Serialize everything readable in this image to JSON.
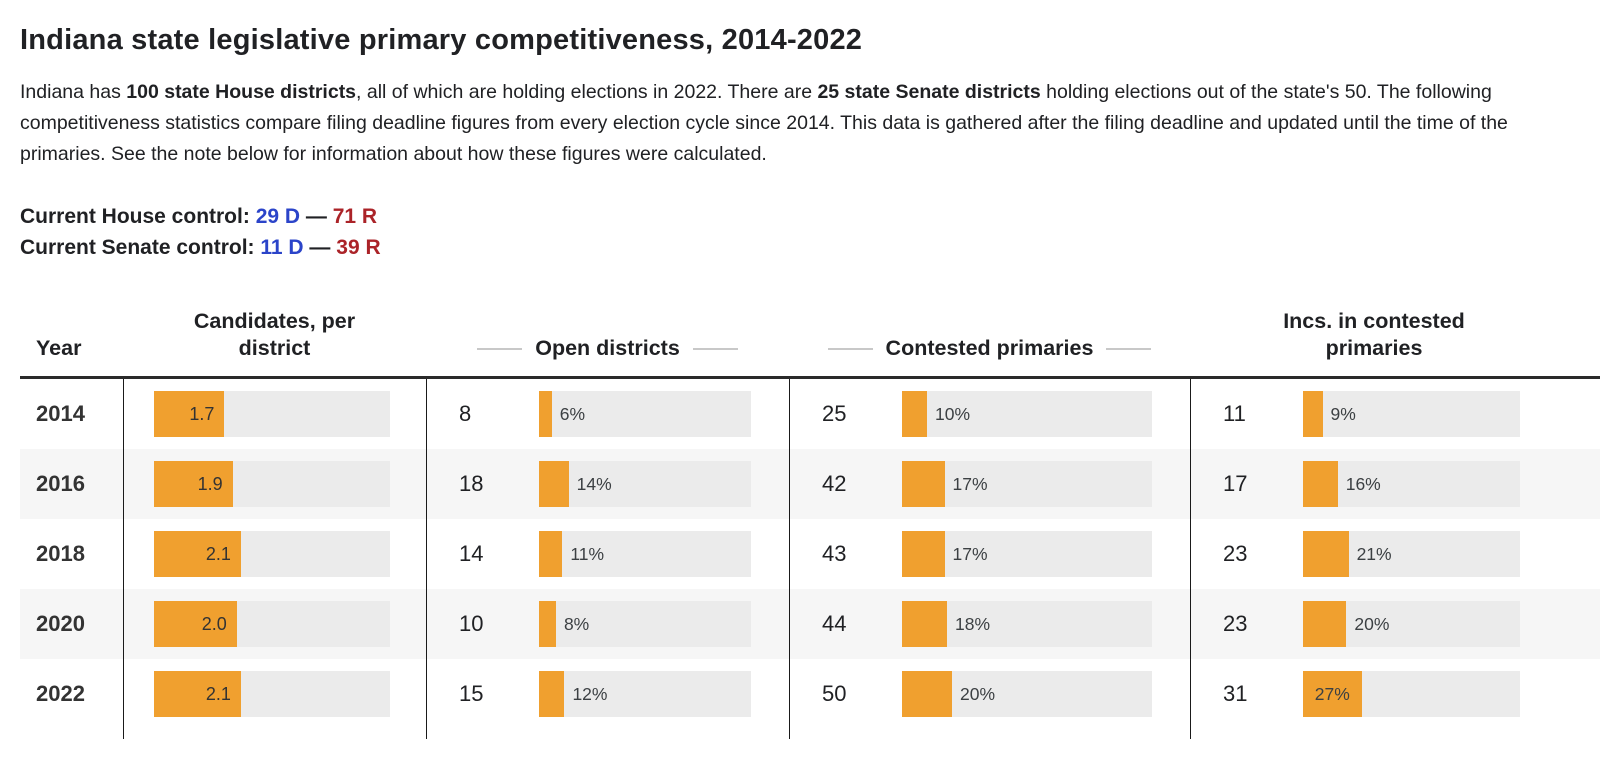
{
  "page": {
    "title": "Indiana state legislative primary competitiveness, 2014-2022",
    "intro_segments": [
      {
        "text": "Indiana has ",
        "bold": false
      },
      {
        "text": "100 state House districts",
        "bold": true
      },
      {
        "text": ", all of which are holding elections in 2022. There are ",
        "bold": false
      },
      {
        "text": "25 state Senate districts",
        "bold": true
      },
      {
        "text": " holding elections out of the state's 50. The following competitiveness statistics compare filing deadline figures from every election cycle since 2014. This data is gathered after the filing deadline and updated until the time of the primaries. See the note below for information about how these figures were calculated.",
        "bold": false
      }
    ],
    "house_control": {
      "label": "Current House control:",
      "dem": "29 D",
      "dash": "—",
      "rep": "71 R"
    },
    "senate_control": {
      "label": "Current Senate control:",
      "dem": "11 D",
      "dash": "—",
      "rep": "39 R"
    }
  },
  "colors": {
    "bar": "#F0A02F",
    "track": "#EBEBEB",
    "stripe": "#F6F6F6",
    "divider": "#1A1A1A",
    "dash": "#C8C8C8",
    "dem": "#2B44C9",
    "rep": "#AB2328"
  },
  "chart_data": {
    "type": "table",
    "title": "Indiana state legislative primary competitiveness, 2014-2022",
    "headers": [
      {
        "label": "Year",
        "dashes": false
      },
      {
        "label": "Candidates, per district",
        "dashes": false
      },
      {
        "label": "Open districts",
        "dashes": true
      },
      {
        "label": "Contested primaries",
        "dashes": true
      },
      {
        "label": "Incs. in contested primaries",
        "dashes": false
      }
    ],
    "years": [
      "2014",
      "2016",
      "2018",
      "2020",
      "2022"
    ],
    "candidates_per_district": {
      "values": [
        1.7,
        1.9,
        2.1,
        2.0,
        2.1
      ],
      "axis_max": 5.7
    },
    "open_districts": {
      "counts": [
        8,
        18,
        14,
        10,
        15
      ],
      "pcts": [
        6,
        14,
        11,
        8,
        12
      ]
    },
    "contested_primaries": {
      "counts": [
        25,
        42,
        43,
        44,
        50
      ],
      "pcts": [
        10,
        17,
        17,
        18,
        20
      ]
    },
    "incs_in_contested_primaries": {
      "counts": [
        11,
        17,
        23,
        23,
        31
      ],
      "pcts": [
        9,
        16,
        21,
        20,
        27
      ]
    },
    "pct_axis_max": 100,
    "inside_label_threshold_pct": 25,
    "legend": "none",
    "grid": "off"
  }
}
